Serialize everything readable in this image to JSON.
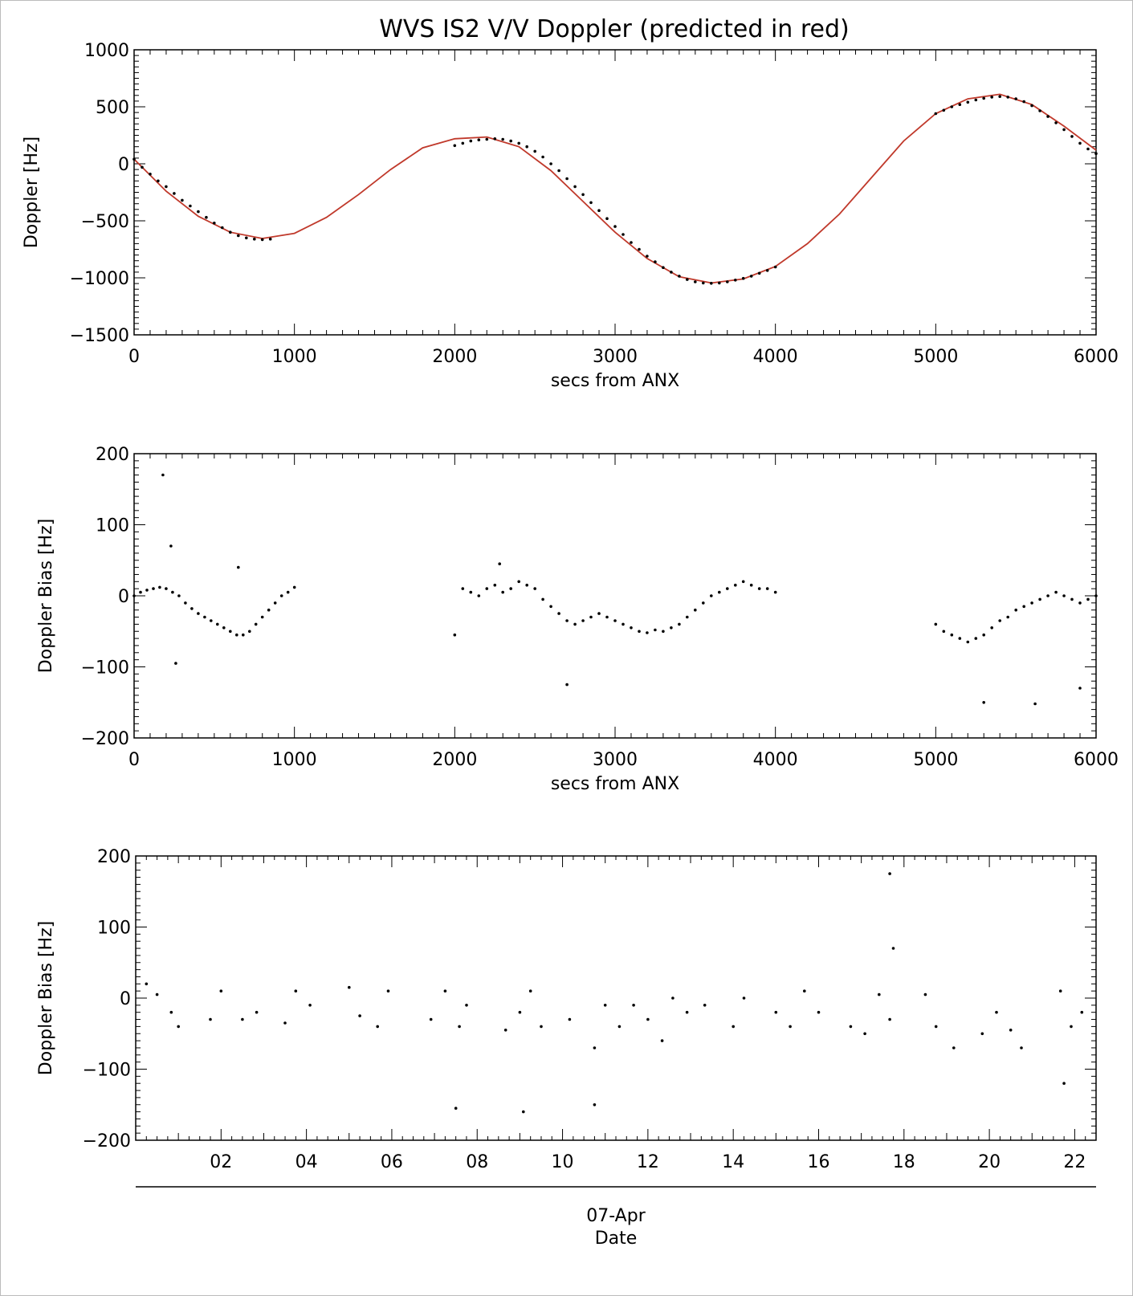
{
  "figure": {
    "title": "WVS IS2 V/V Doppler (predicted in red)",
    "colors": {
      "observed": "#000000",
      "predicted": "#c0392b",
      "axes": "#000000"
    }
  },
  "chart_data": [
    {
      "type": "scatter",
      "title": "WVS IS2 V/V Doppler (predicted in red)",
      "xlabel": "secs from ANX",
      "ylabel": "Doppler [Hz]",
      "xlim": [
        0,
        6000
      ],
      "ylim": [
        -1500,
        1000
      ],
      "xticks": [
        0,
        1000,
        2000,
        3000,
        4000,
        5000,
        6000
      ],
      "yticks": [
        -1500,
        -1000,
        -500,
        0,
        500,
        1000
      ],
      "series": [
        {
          "style": "line",
          "color": "#c0392b",
          "x": [
            0,
            200,
            400,
            600,
            800,
            1000,
            1200,
            1400,
            1600,
            1800,
            2000,
            2200,
            2400,
            2600,
            2800,
            3000,
            3200,
            3400,
            3600,
            3800,
            4000,
            4200,
            4400,
            4600,
            4800,
            5000,
            5200,
            5400,
            5600,
            5800,
            6000
          ],
          "y": [
            40,
            -240,
            -460,
            -600,
            -655,
            -610,
            -470,
            -270,
            -50,
            140,
            220,
            235,
            150,
            -60,
            -330,
            -600,
            -830,
            -990,
            -1045,
            -1010,
            -900,
            -700,
            -440,
            -120,
            200,
            440,
            570,
            610,
            520,
            330,
            120
          ]
        },
        {
          "style": "points",
          "color": "#000000",
          "x": [
            0,
            50,
            100,
            150,
            200,
            250,
            300,
            350,
            400,
            450,
            500,
            550,
            600,
            650,
            700,
            750,
            800,
            850,
            2000,
            2050,
            2100,
            2150,
            2200,
            2250,
            2300,
            2350,
            2400,
            2450,
            2500,
            2550,
            2600,
            2650,
            2700,
            2750,
            2800,
            2850,
            2900,
            2950,
            3000,
            3050,
            3100,
            3150,
            3200,
            3250,
            3300,
            3350,
            3400,
            3450,
            3500,
            3550,
            3600,
            3650,
            3700,
            3750,
            3800,
            3850,
            3900,
            3950,
            4000,
            5000,
            5050,
            5100,
            5150,
            5200,
            5250,
            5300,
            5350,
            5400,
            5450,
            5500,
            5550,
            5600,
            5650,
            5700,
            5750,
            5800,
            5850,
            5900,
            5950,
            6000
          ],
          "y": [
            40,
            -30,
            -90,
            -150,
            -200,
            -260,
            -320,
            -370,
            -420,
            -470,
            -520,
            -560,
            -600,
            -630,
            -650,
            -660,
            -665,
            -660,
            160,
            180,
            200,
            210,
            215,
            220,
            215,
            200,
            180,
            150,
            110,
            60,
            0,
            -60,
            -130,
            -200,
            -270,
            -340,
            -410,
            -480,
            -550,
            -620,
            -690,
            -750,
            -810,
            -860,
            -910,
            -950,
            -985,
            -1015,
            -1035,
            -1045,
            -1048,
            -1045,
            -1035,
            -1020,
            -1005,
            -985,
            -960,
            -935,
            -905,
            440,
            470,
            500,
            520,
            540,
            560,
            575,
            585,
            590,
            585,
            570,
            545,
            510,
            465,
            415,
            360,
            300,
            240,
            180,
            130,
            90
          ]
        }
      ]
    },
    {
      "type": "scatter",
      "title": "",
      "xlabel": "secs from ANX",
      "ylabel": "Doppler Bias [Hz]",
      "xlim": [
        0,
        6000
      ],
      "ylim": [
        -200,
        200
      ],
      "xticks": [
        0,
        1000,
        2000,
        3000,
        4000,
        5000,
        6000
      ],
      "yticks": [
        -200,
        -100,
        0,
        100,
        200
      ],
      "series": [
        {
          "style": "points",
          "color": "#000000",
          "x": [
            0,
            40,
            80,
            120,
            160,
            200,
            240,
            280,
            320,
            360,
            400,
            440,
            480,
            520,
            560,
            600,
            640,
            680,
            720,
            760,
            800,
            840,
            880,
            920,
            960,
            1000,
            180,
            260,
            230,
            650,
            2000,
            2050,
            2100,
            2150,
            2200,
            2250,
            2300,
            2350,
            2400,
            2450,
            2500,
            2550,
            2600,
            2650,
            2700,
            2750,
            2800,
            2850,
            2900,
            2950,
            3000,
            3050,
            3100,
            3150,
            3200,
            3250,
            3300,
            3350,
            3400,
            3450,
            3500,
            3550,
            3600,
            3650,
            3700,
            3750,
            3800,
            3850,
            3900,
            3950,
            4000,
            2700,
            2280,
            5000,
            5050,
            5100,
            5150,
            5200,
            5250,
            5300,
            5350,
            5400,
            5450,
            5500,
            5550,
            5600,
            5650,
            5700,
            5750,
            5800,
            5850,
            5900,
            5950,
            6000,
            5300,
            5620,
            5900
          ],
          "y": [
            0,
            5,
            8,
            10,
            12,
            10,
            5,
            0,
            -10,
            -18,
            -25,
            -30,
            -35,
            -40,
            -45,
            -50,
            -55,
            -55,
            -50,
            -40,
            -30,
            -20,
            -10,
            0,
            5,
            12,
            170,
            -95,
            70,
            40,
            -55,
            10,
            5,
            0,
            10,
            15,
            5,
            10,
            20,
            15,
            10,
            -5,
            -15,
            -25,
            -35,
            -40,
            -35,
            -30,
            -25,
            -30,
            -35,
            -40,
            -45,
            -50,
            -52,
            -48,
            -50,
            -45,
            -40,
            -30,
            -20,
            -10,
            0,
            5,
            10,
            15,
            20,
            15,
            10,
            10,
            5,
            -125,
            45,
            -40,
            -50,
            -55,
            -60,
            -65,
            -60,
            -55,
            -45,
            -35,
            -30,
            -20,
            -15,
            -10,
            -5,
            0,
            5,
            0,
            -5,
            -10,
            -5,
            0,
            -150,
            -152,
            -130
          ]
        }
      ]
    },
    {
      "type": "scatter",
      "title": "",
      "xlabel": "07-Apr\nDate",
      "ylabel": "Doppler Bias [Hz]",
      "xlim": [
        "07-Apr 00:00",
        "07-Apr 22:30"
      ],
      "ylim": [
        -200,
        200
      ],
      "xticks": [
        "02",
        "04",
        "06",
        "08",
        "10",
        "12",
        "14",
        "16",
        "18",
        "20",
        "22"
      ],
      "yticks": [
        -200,
        -100,
        0,
        100,
        200
      ],
      "series": [
        {
          "style": "points",
          "color": "#000000",
          "x": [
            "07-Apr 00:15",
            "07-Apr 00:30",
            "07-Apr 00:50",
            "07-Apr 01:00",
            "07-Apr 01:45",
            "07-Apr 02:00",
            "07-Apr 02:30",
            "07-Apr 02:50",
            "07-Apr 03:30",
            "07-Apr 03:45",
            "07-Apr 04:05",
            "07-Apr 05:00",
            "07-Apr 05:15",
            "07-Apr 05:40",
            "07-Apr 05:55",
            "07-Apr 06:55",
            "07-Apr 07:15",
            "07-Apr 07:35",
            "07-Apr 07:45",
            "07-Apr 08:40",
            "07-Apr 09:00",
            "07-Apr 09:15",
            "07-Apr 09:30",
            "07-Apr 10:10",
            "07-Apr 10:45",
            "07-Apr 11:00",
            "07-Apr 11:20",
            "07-Apr 11:40",
            "07-Apr 12:00",
            "07-Apr 12:20",
            "07-Apr 12:35",
            "07-Apr 12:55",
            "07-Apr 13:20",
            "07-Apr 14:00",
            "07-Apr 14:15",
            "07-Apr 15:00",
            "07-Apr 15:20",
            "07-Apr 15:40",
            "07-Apr 16:00",
            "07-Apr 16:45",
            "07-Apr 17:05",
            "07-Apr 17:25",
            "07-Apr 17:40",
            "07-Apr 18:30",
            "07-Apr 18:45",
            "07-Apr 19:10",
            "07-Apr 19:50",
            "07-Apr 20:10",
            "07-Apr 20:30",
            "07-Apr 20:45",
            "07-Apr 21:40",
            "07-Apr 21:55",
            "07-Apr 22:10",
            "07-Apr 07:30",
            "07-Apr 09:05",
            "07-Apr 10:45",
            "07-Apr 17:40",
            "07-Apr 17:45",
            "07-Apr 21:45"
          ],
          "y": [
            20,
            5,
            -20,
            -40,
            -30,
            10,
            -30,
            -20,
            -35,
            10,
            -10,
            15,
            -25,
            -40,
            10,
            -30,
            10,
            -40,
            -10,
            -45,
            -20,
            10,
            -40,
            -30,
            -70,
            -10,
            -40,
            -10,
            -30,
            -60,
            0,
            -20,
            -10,
            -40,
            0,
            -20,
            -40,
            10,
            -20,
            -40,
            -50,
            5,
            -30,
            5,
            -40,
            -70,
            -50,
            -20,
            -45,
            -70,
            10,
            -40,
            -20,
            -155,
            -160,
            -150,
            175,
            70,
            -120
          ]
        }
      ]
    }
  ]
}
